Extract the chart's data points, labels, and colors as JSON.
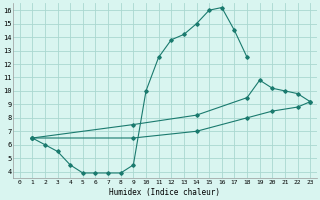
{
  "xlabel": "Humidex (Indice chaleur)",
  "bg_color": "#d9f5f0",
  "grid_color": "#aad8d0",
  "line_color": "#1a7a6e",
  "xlim": [
    -0.5,
    23.5
  ],
  "ylim": [
    3.5,
    16.5
  ],
  "xticks": [
    0,
    1,
    2,
    3,
    4,
    5,
    6,
    7,
    8,
    9,
    10,
    11,
    12,
    13,
    14,
    15,
    16,
    17,
    18,
    19,
    20,
    21,
    22,
    23
  ],
  "yticks": [
    4,
    5,
    6,
    7,
    8,
    9,
    10,
    11,
    12,
    13,
    14,
    15,
    16
  ],
  "curve1_x": [
    1,
    2,
    3,
    4,
    5,
    6,
    7,
    8,
    9,
    10,
    11,
    12,
    13,
    14,
    15,
    16,
    17,
    18
  ],
  "curve1_y": [
    6.5,
    6.0,
    5.5,
    4.5,
    3.9,
    3.9,
    3.9,
    3.9,
    4.5,
    10.0,
    12.5,
    13.8,
    14.2,
    15.0,
    16.0,
    16.2,
    14.5,
    12.5
  ],
  "curve2_x": [
    1,
    9,
    14,
    18,
    19,
    20,
    21,
    22,
    23
  ],
  "curve2_y": [
    6.5,
    7.5,
    8.2,
    9.5,
    10.8,
    10.2,
    10.0,
    9.8,
    9.2
  ],
  "curve3_x": [
    1,
    9,
    14,
    18,
    20,
    22,
    23
  ],
  "curve3_y": [
    6.5,
    6.5,
    7.0,
    8.0,
    8.5,
    8.8,
    9.2
  ]
}
